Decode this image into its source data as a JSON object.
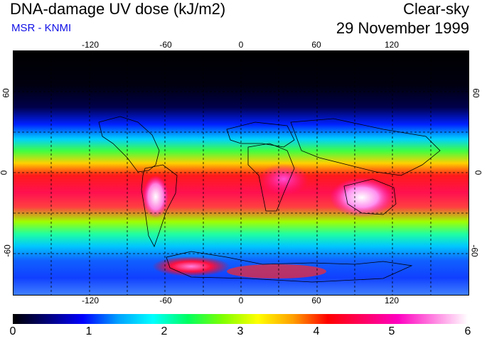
{
  "header": {
    "title": "DNA-damage UV dose (kJ/m2)",
    "subtitle": "MSR - KNMI",
    "condition": "Clear-sky",
    "date": "29 November 1999"
  },
  "axes": {
    "longitude_ticks": [
      "-120",
      "-60",
      "0",
      "60",
      "120"
    ],
    "latitude_ticks": [
      "60",
      "0",
      "-60"
    ]
  },
  "colorbar": {
    "labels": [
      "0",
      "1",
      "2",
      "3",
      "4",
      "5",
      "6"
    ],
    "colors": [
      "#000000",
      "#00007a",
      "#0000ff",
      "#00a0ff",
      "#00ffff",
      "#00ff60",
      "#80ff00",
      "#ffff00",
      "#ffa000",
      "#ff0000",
      "#ff0060",
      "#ff00c0",
      "#ff80e0",
      "#ffffff"
    ]
  }
}
